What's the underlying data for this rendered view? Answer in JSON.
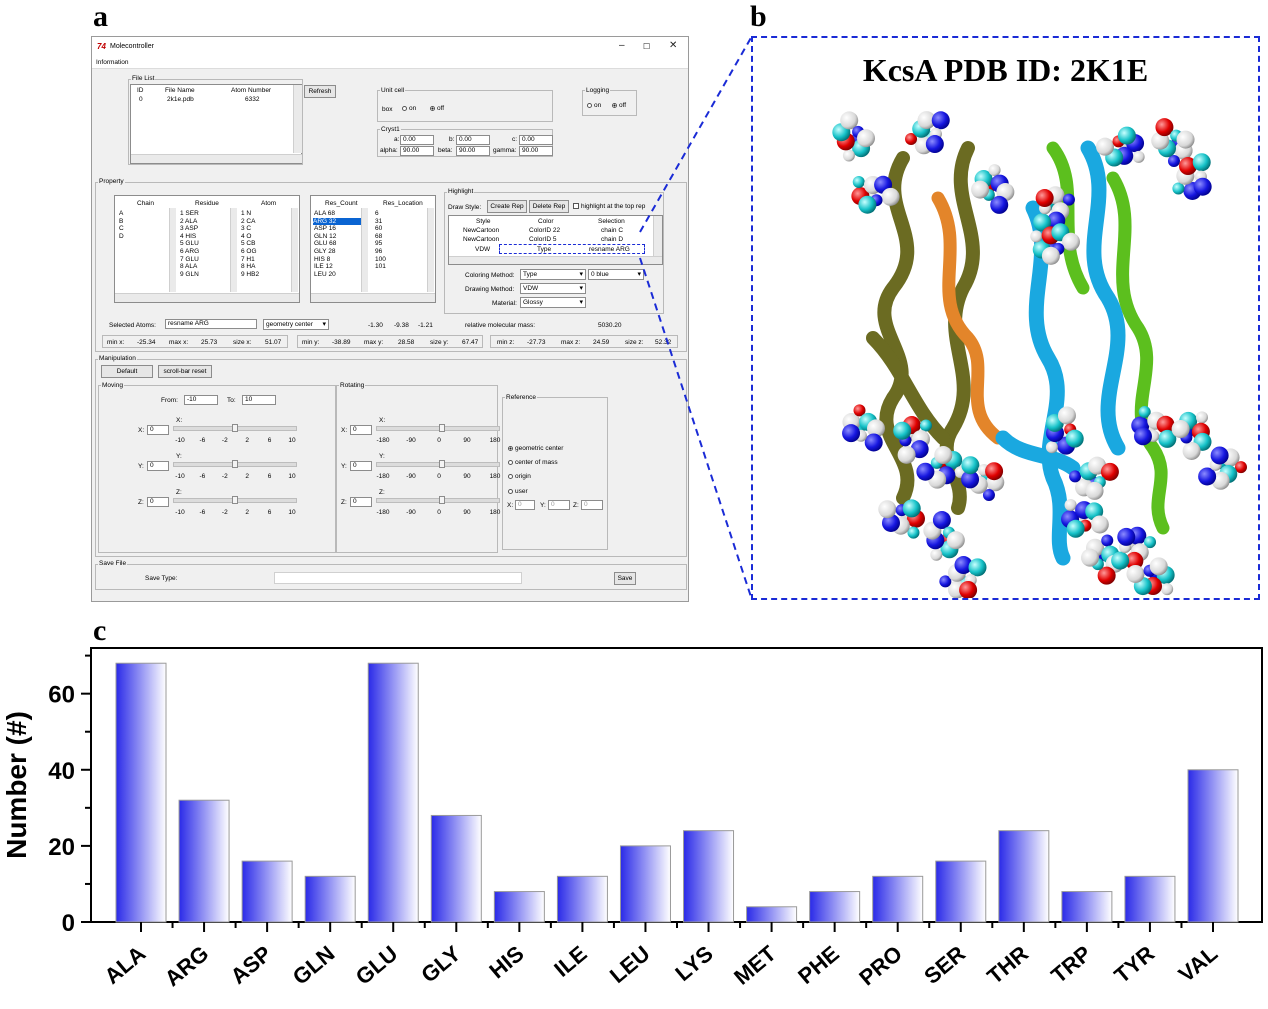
{
  "panels": {
    "a": "a",
    "b": "b",
    "c": "c"
  },
  "window": {
    "title": "Molecontroller",
    "logo_text": "74",
    "controls": {
      "minimize": "–",
      "maximize": "☐",
      "close": "✕"
    },
    "menu": "Information",
    "file_list": {
      "label": "File List",
      "headers": [
        "ID",
        "File Name",
        "Atom Number"
      ],
      "row": [
        "0",
        "2k1e.pdb",
        "6332"
      ],
      "refresh": "Refresh"
    },
    "unit_cell": {
      "label": "Unit cell",
      "box": "box",
      "on": "on",
      "off": "off"
    },
    "cryst1": {
      "label": "Cryst1",
      "a_label": "a:",
      "a": "0.00",
      "b_label": "b:",
      "b": "0.00",
      "c_label": "c:",
      "c": "0.00",
      "alpha_label": "alpha:",
      "alpha": "90.00",
      "beta_label": "beta:",
      "beta": "90.00",
      "gamma_label": "gamma:",
      "gamma": "90.00"
    },
    "logging": {
      "label": "Logging",
      "on": "on",
      "off": "off"
    },
    "property": {
      "label": "Property",
      "chain_header": "Chain",
      "residue_header": "Residue",
      "atom_header": "Atom",
      "chains": "A\nB\nC\nD",
      "residues": "1 SER\n2 ALA\n3 ASP\n4 HIS\n5 GLU\n6 ARG\n7 GLU\n8 ALA\n9 GLN",
      "atoms": "1 N\n2 CA\n3 C\n4 O\n5 CB\n6 OG\n7 H1\n8 HA\n9 HB2",
      "res_count_header": "Res_Count",
      "res_location_header": "Res_Location",
      "res_count_first": "ALA 68",
      "res_count_selected": "ARG 32",
      "res_count_rest": "ASP 16\nGLN 12\nGLU 68\nGLY 28\nHIS 8\nILE 12\nLEU 20",
      "res_location": "6\n31\n60\n68\n95\n96\n100\n101",
      "selected_atoms_label": "Selected Atoms:",
      "selected_atoms_value": "resname ARG",
      "geometry_center": "geometry center",
      "center_x": "-1.30",
      "center_y": "-9.38",
      "center_z": "-1.21",
      "mass_label": "relative molecular mass:",
      "mass_value": "5030.20",
      "minx_label": "min x:",
      "minx": "-25.34",
      "maxx_label": "max x:",
      "maxx": "25.73",
      "sizex_label": "size x:",
      "sizex": "51.07",
      "miny_label": "min y:",
      "miny": "-38.89",
      "maxy_label": "max y:",
      "maxy": "28.58",
      "sizey_label": "size y:",
      "sizey": "67.47",
      "minz_label": "min z:",
      "minz": "-27.73",
      "maxz_label": "max z:",
      "maxz": "24.59",
      "sizez_label": "size z:",
      "sizez": "52.32"
    },
    "highlight": {
      "label": "Highlight",
      "draw_style": "Draw Style:",
      "create_rep": "Create Rep",
      "delete_rep": "Delete Rep",
      "top_rep": "highlight at the top rep",
      "headers": [
        "Style",
        "Color",
        "Selection"
      ],
      "rows": [
        [
          "NewCartoon",
          "ColorID 22",
          "chain C"
        ],
        [
          "NewCartoon",
          "ColorID 5",
          "chain D"
        ],
        [
          "VDW",
          "Type",
          "resname ARG"
        ]
      ],
      "coloring_label": "Coloring Method:",
      "coloring": "Type",
      "color_extra": "0 blue",
      "drawing_label": "Drawing Method:",
      "drawing": "VDW",
      "material_label": "Material:",
      "material": "Glossy"
    },
    "manipulation": {
      "label": "Manipulation",
      "default_btn": "Default",
      "reset_btn": "scroll-bar reset",
      "moving_label": "Moving",
      "from_label": "From:",
      "from": "-10",
      "to_label": "To:",
      "to": "10",
      "rotating_label": "Rotating",
      "x_label": "X:",
      "y_label": "Y:",
      "z_label": "Z:",
      "move_value": "0",
      "rot_value": "0",
      "move_ticks": [
        "-10",
        "-6",
        "-2",
        "2",
        "6",
        "10"
      ],
      "rot_ticks": [
        "-180",
        "-90",
        "0",
        "90",
        "180"
      ],
      "reference_label": "Reference",
      "ref_geometric": "geometric center",
      "ref_mass": "center of mass",
      "ref_origin": "origin",
      "ref_user": "user",
      "ref_xyz_value": "0"
    },
    "save": {
      "label": "Save File",
      "type_label": "Save Type:",
      "button": "Save"
    }
  },
  "structure": {
    "title": "KcsA PDB ID: 2K1E"
  },
  "colors": {
    "dash_blue": "#1a2bd6",
    "bar_blue": "#2a2ae8",
    "olive": "#6b6b22",
    "orange": "#e3852a",
    "cyan": "#1aa8e0",
    "green": "#5cbf1e"
  },
  "chart_data": {
    "type": "bar",
    "categories": [
      "ALA",
      "ARG",
      "ASP",
      "GLN",
      "GLU",
      "GLY",
      "HIS",
      "ILE",
      "LEU",
      "LYS",
      "MET",
      "PHE",
      "PRO",
      "SER",
      "THR",
      "TRP",
      "TYR",
      "VAL"
    ],
    "values": [
      68,
      32,
      16,
      12,
      68,
      28,
      8,
      12,
      20,
      24,
      4,
      8,
      12,
      16,
      24,
      8,
      12,
      40
    ],
    "ylabel": "Number (#)",
    "xlabel": "",
    "ylim": [
      0,
      72
    ],
    "yticks": [
      0,
      20,
      40,
      60
    ],
    "grid": false
  }
}
